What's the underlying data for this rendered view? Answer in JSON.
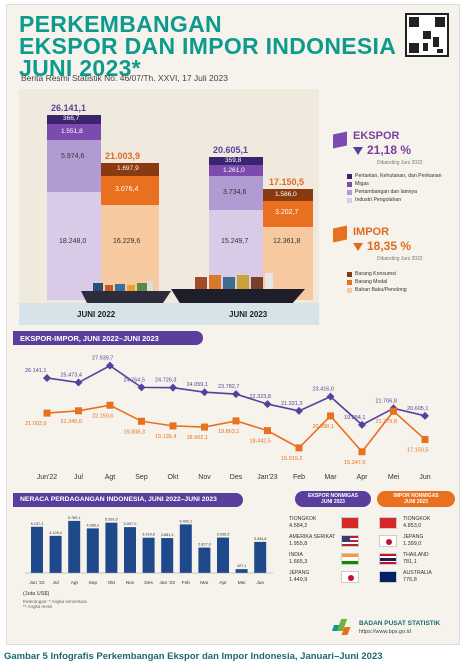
{
  "title": {
    "line1": "PERKEMBANGAN",
    "line2": "EKSPOR DAN IMPOR INDONESIA",
    "line3": "JUNI 2023*"
  },
  "subtitle": "Berita Resmi Statistik No. 46/07/Th. XXVI, 17 Juli 2023",
  "stacks": {
    "june2022": {
      "label": "JUNI 2022",
      "export_total": "26.141,1",
      "export_segments": [
        "366,7",
        "1.551,8",
        "5.974,6",
        "18.248,0"
      ],
      "import_total": "21.003,9",
      "import_segments": [
        "1.697,9",
        "3.076,4",
        "16.229,6"
      ]
    },
    "june2023": {
      "label": "JUNI 2023",
      "export_total": "20.605,1",
      "export_segments": [
        "359,8",
        "1.261,0",
        "3.734,6",
        "15.249,7"
      ],
      "import_total": "17.150,5",
      "import_segments": [
        "1.586,0",
        "3.202,7",
        "12.361,8"
      ]
    }
  },
  "ekspor": {
    "label": "EKSPOR",
    "change": "21,18 %",
    "note": "Dibanding Juni 2022",
    "legend": [
      "Pertanian, Kehutanan, dan Perikanan",
      "Migas",
      "Pertambangan dan lainnya",
      "Industri Pengolahan"
    ]
  },
  "impor": {
    "label": "IMPOR",
    "change": "18,35 %",
    "note": "Dibanding Juni 2022",
    "legend": [
      "Barang Konsumsi",
      "Barang Modal",
      "Bahan Baku/Penolong"
    ]
  },
  "colors": {
    "exp": [
      "#3b2370",
      "#7b4bb0",
      "#b29bd3",
      "#d9cbe8"
    ],
    "imp": [
      "#8a3a10",
      "#e8701f",
      "#f7c9a0"
    ],
    "teal": "#0e9a8c",
    "purple": "#5a3e9c"
  },
  "line_section_title": "EKSPOR-IMPOR, JUNI 2022–JUNI 2023",
  "bar_section_title": "NERACA PERDAGANGAN INDONESIA, JUNI 2022–JUNI 2023",
  "chart_data": [
    {
      "type": "line",
      "categories": [
        "Jun'22",
        "Jul",
        "Agt",
        "Sep",
        "Okt",
        "Nov",
        "Des",
        "Jan'23",
        "Feb",
        "Mar",
        "Apr",
        "Mei",
        "Jun"
      ],
      "series": [
        {
          "values": [
            26141.1,
            25473.4,
            27939.7,
            24764.5,
            24726.3,
            24059.1,
            23782.7,
            22323.8,
            21321.3,
            23416.0,
            19284.1,
            21706.8,
            20605.1
          ],
          "labels": [
            "26.141,1",
            "25.473,4",
            "27.939,7",
            "24.764,5",
            "24.726,3",
            "24.059,1",
            "23.782,7",
            "22.323,8",
            "21.321,3",
            "23.416,0",
            "19.284,1",
            "21.706,8",
            "20.605,1"
          ]
        },
        {
          "values": [
            21003.9,
            21345.0,
            22150.6,
            19808.3,
            19135.4,
            18962.1,
            19863.1,
            18442.5,
            15919.2,
            20588.1,
            15347.6,
            21279.8,
            17150.5
          ],
          "labels": [
            "21.003,9",
            "21.345,0",
            "22.150,6",
            "19.808,3",
            "19.135,4",
            "18.962,1",
            "19.863,1",
            "18.442,5",
            "15.919,2",
            "20.588,1",
            "15.347,6",
            "21.279,8",
            "17.150,5"
          ]
        }
      ]
    },
    {
      "type": "bar",
      "categories": [
        "Jun '22",
        "Jul",
        "Agt",
        "Sep",
        "Okt",
        "Nov",
        "Des",
        "Jan '23",
        "Feb",
        "Mar",
        "Apr",
        "Mei",
        "Jun"
      ],
      "values": [
        5137.2,
        4128.4,
        5789.1,
        4956.2,
        5591.0,
        5097.0,
        3919.6,
        3881.3,
        5402.1,
        2827.9,
        3936.5,
        427.1,
        3454.6
      ],
      "labels": [
        "5.137,2",
        "4.128,4",
        "5.789,1",
        "4.956,2",
        "5.591,0",
        "5.097,0",
        "3.919,6",
        "3.881,3",
        "5.402,1",
        "2.827,9",
        "3.936,5",
        "427,1",
        "3.454,6"
      ],
      "ylim": [
        0,
        6000
      ]
    }
  ],
  "bar_unit": "(Juta US$)",
  "bar_note": "Keterangan: * Angka sementara\n** Angka revisi",
  "nonmigas_export": {
    "title": "EKSPOR NONMIGAS\nJUNI 2023",
    "items": [
      {
        "country": "TIONGKOK",
        "value": "4.584,2"
      },
      {
        "country": "AMERIKA SERIKAT",
        "value": "1.955,8"
      },
      {
        "country": "INDIA",
        "value": "1.665,3"
      },
      {
        "country": "JEPANG",
        "value": "1.449,9"
      }
    ]
  },
  "nonmigas_import": {
    "title": "IMPOR NONMIGAS\nJUNI 2023",
    "items": [
      {
        "country": "TIONGKOK",
        "value": "4.853,0"
      },
      {
        "country": "JEPANG",
        "value": "1.399,0"
      },
      {
        "country": "THAILAND",
        "value": "781,1"
      },
      {
        "country": "AUSTRALIA",
        "value": "776,8"
      }
    ]
  },
  "footer": {
    "org": "BADAN PUSAT STATISTIK",
    "url": "https://www.bps.go.id"
  },
  "caption": "Gambar 5    Infografis Perkembangan Ekspor dan Impor Indonesia, Januari–Juni 2023"
}
